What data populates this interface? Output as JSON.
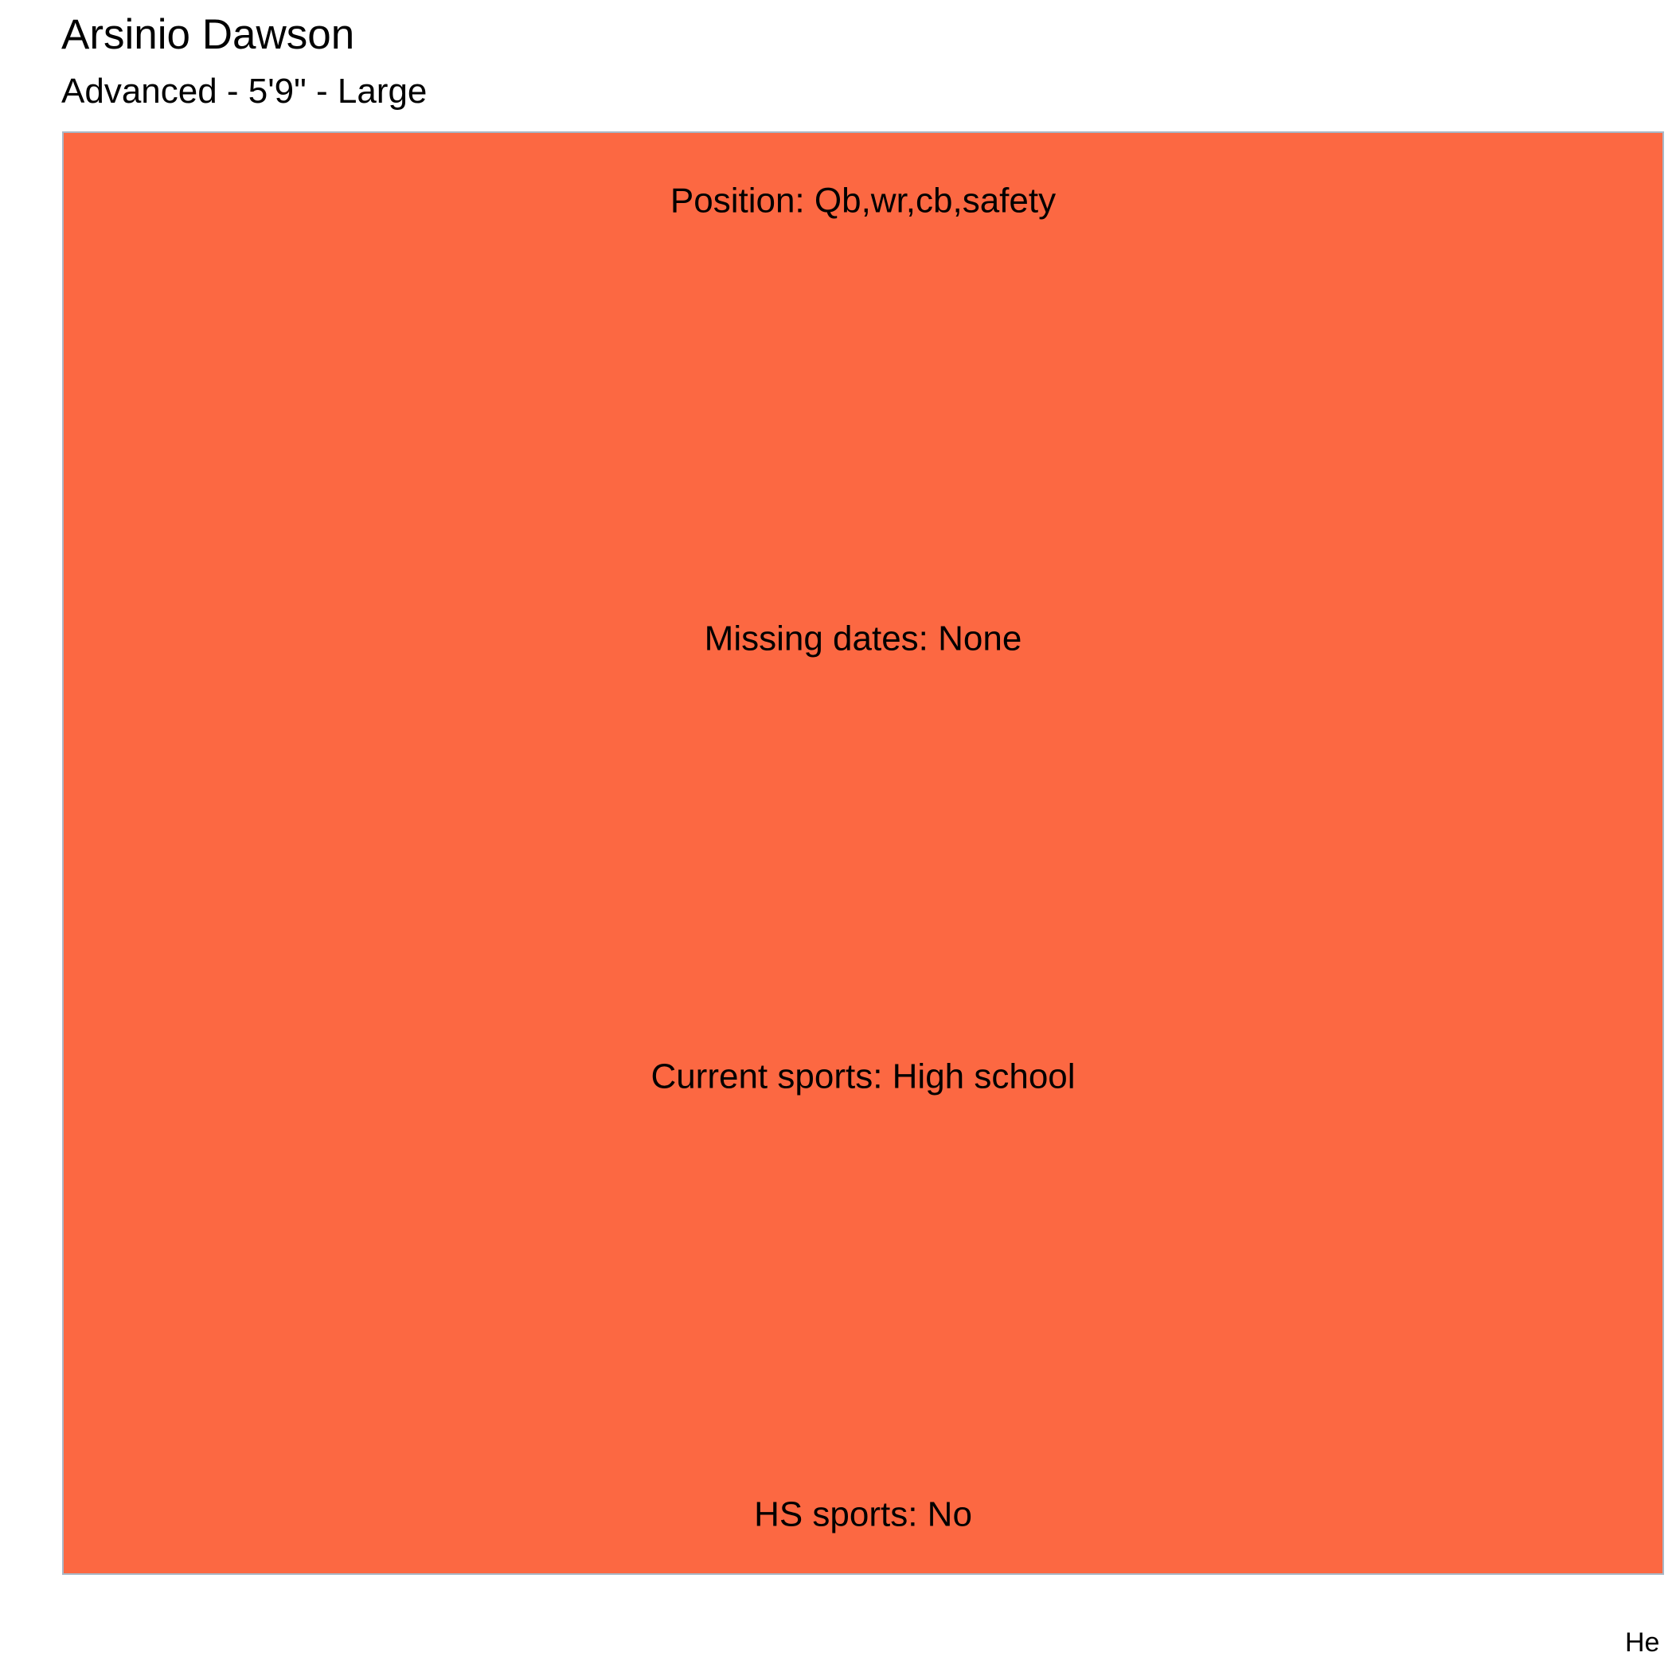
{
  "title": "Arsinio Dawson",
  "subtitle": "Advanced - 5'9\" - Large",
  "caption": "He",
  "chart_data": {
    "type": "heatmap",
    "fill_color": "#FC6842",
    "border_color": "#A9B7C6",
    "labels": [
      "Position: Qb,wr,cb,safety",
      "Missing dates: None",
      "Current sports: High school",
      "HS sports: No"
    ]
  }
}
